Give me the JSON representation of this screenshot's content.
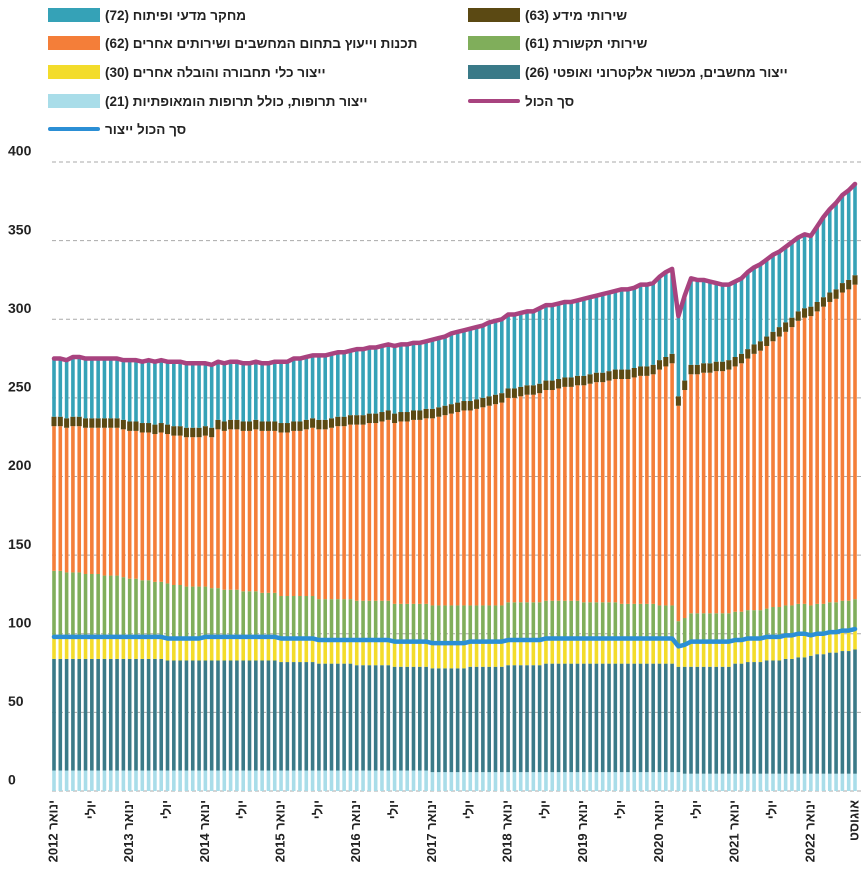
{
  "chart_data": {
    "type": "stacked-bar",
    "ylim": [
      0,
      400
    ],
    "yticks": [
      0,
      50,
      100,
      150,
      200,
      250,
      300,
      350,
      400
    ],
    "grid": true,
    "categories": [
      "ינואר 2012",
      null,
      null,
      null,
      null,
      null,
      "יולי",
      null,
      null,
      null,
      null,
      null,
      "ינואר 2013",
      null,
      null,
      null,
      null,
      null,
      "יולי",
      null,
      null,
      null,
      null,
      null,
      "ינואר 2014",
      null,
      null,
      null,
      null,
      null,
      "יולי",
      null,
      null,
      null,
      null,
      null,
      "ינואר 2015",
      null,
      null,
      null,
      null,
      null,
      "יולי",
      null,
      null,
      null,
      null,
      null,
      "ינואר 2016",
      null,
      null,
      null,
      null,
      null,
      "יולי",
      null,
      null,
      null,
      null,
      null,
      "ינואר 2017",
      null,
      null,
      null,
      null,
      null,
      "יולי",
      null,
      null,
      null,
      null,
      null,
      "ינואר 2018",
      null,
      null,
      null,
      null,
      null,
      "יולי",
      null,
      null,
      null,
      null,
      null,
      "ינואר 2019",
      null,
      null,
      null,
      null,
      null,
      "יולי",
      null,
      null,
      null,
      null,
      null,
      "ינואר 2020",
      null,
      null,
      null,
      null,
      null,
      "יולי",
      null,
      null,
      null,
      null,
      null,
      "ינואר 2021",
      null,
      null,
      null,
      null,
      null,
      "יולי",
      null,
      null,
      null,
      null,
      null,
      "ינואר 2022",
      null,
      null,
      null,
      null,
      null,
      null,
      "אוגוסט"
    ],
    "series": [
      {
        "name": "ייצור תרופות, כולל תרופות הומאופתיות (21)",
        "color": "#a9dde9",
        "type": "bar",
        "values": [
          13,
          13,
          13,
          13,
          13,
          13,
          13,
          13,
          13,
          13,
          13,
          13,
          13,
          13,
          13,
          13,
          13,
          13,
          13,
          13,
          13,
          13,
          13,
          13,
          13,
          13,
          13,
          13,
          13,
          13,
          13,
          13,
          13,
          13,
          13,
          13,
          13,
          13,
          13,
          13,
          13,
          13,
          13,
          13,
          13,
          13,
          13,
          13,
          13,
          13,
          13,
          13,
          13,
          13,
          13,
          13,
          13,
          13,
          13,
          13,
          12,
          12,
          12,
          12,
          12,
          12,
          12,
          12,
          12,
          12,
          12,
          12,
          12,
          12,
          12,
          12,
          12,
          12,
          12,
          12,
          12,
          12,
          12,
          12,
          12,
          12,
          12,
          12,
          12,
          12,
          12,
          12,
          12,
          12,
          12,
          12,
          12,
          12,
          12,
          12,
          11,
          11,
          11,
          11,
          11,
          11,
          11,
          11,
          11,
          11,
          11,
          11,
          11,
          11,
          11,
          11,
          11,
          11,
          11,
          11,
          11,
          11,
          11,
          11,
          11,
          11,
          11,
          11
        ]
      },
      {
        "name": "ייצור מחשבים, מכשור אלקטרוני ואופטי (26)",
        "color": "#3a7a88",
        "type": "bar",
        "values": [
          71,
          71,
          71,
          71,
          71,
          71,
          71,
          71,
          71,
          71,
          71,
          71,
          71,
          71,
          71,
          71,
          71,
          71,
          70,
          70,
          70,
          70,
          70,
          70,
          70,
          70,
          70,
          70,
          70,
          70,
          70,
          70,
          70,
          70,
          70,
          70,
          69,
          69,
          69,
          69,
          69,
          69,
          68,
          68,
          68,
          68,
          68,
          68,
          67,
          67,
          67,
          67,
          67,
          67,
          66,
          66,
          66,
          66,
          66,
          66,
          66,
          66,
          66,
          66,
          66,
          66,
          67,
          67,
          67,
          67,
          67,
          67,
          68,
          68,
          68,
          68,
          68,
          68,
          69,
          69,
          69,
          69,
          69,
          69,
          69,
          69,
          69,
          69,
          69,
          69,
          69,
          69,
          69,
          69,
          69,
          69,
          69,
          69,
          69,
          67,
          68,
          68,
          68,
          68,
          68,
          68,
          68,
          68,
          70,
          70,
          71,
          71,
          71,
          72,
          72,
          72,
          73,
          73,
          74,
          74,
          75,
          76,
          76,
          77,
          77,
          78,
          78,
          79
        ]
      },
      {
        "name": "ייצור כלי תחבורה והובלה אחרים (30)",
        "color": "#f3dc2b",
        "type": "bar",
        "values": [
          14,
          14,
          14,
          14,
          14,
          14,
          14,
          14,
          14,
          14,
          14,
          14,
          14,
          14,
          14,
          14,
          14,
          14,
          14,
          14,
          14,
          14,
          14,
          14,
          15,
          15,
          15,
          15,
          15,
          15,
          15,
          15,
          15,
          15,
          15,
          15,
          15,
          15,
          15,
          15,
          15,
          15,
          15,
          15,
          15,
          15,
          15,
          15,
          16,
          16,
          16,
          16,
          16,
          16,
          16,
          16,
          16,
          16,
          16,
          16,
          16,
          16,
          16,
          16,
          16,
          16,
          16,
          16,
          16,
          16,
          16,
          16,
          16,
          16,
          16,
          16,
          16,
          16,
          16,
          16,
          16,
          16,
          16,
          16,
          16,
          16,
          16,
          16,
          16,
          16,
          16,
          16,
          16,
          16,
          16,
          16,
          16,
          16,
          16,
          13,
          14,
          16,
          16,
          16,
          16,
          16,
          16,
          16,
          15,
          15,
          15,
          15,
          15,
          15,
          15,
          15,
          15,
          15,
          15,
          15,
          13,
          13,
          13,
          13,
          13,
          13,
          13,
          13
        ]
      },
      {
        "name": "שירותי תקשורת (61)",
        "color": "#80ae5b",
        "type": "bar",
        "values": [
          42,
          42,
          41,
          41,
          41,
          40,
          40,
          40,
          39,
          39,
          39,
          38,
          37,
          37,
          36,
          36,
          35,
          35,
          35,
          34,
          34,
          33,
          33,
          33,
          32,
          31,
          31,
          30,
          30,
          30,
          29,
          29,
          29,
          28,
          28,
          28,
          27,
          27,
          27,
          27,
          27,
          27,
          26,
          26,
          26,
          26,
          26,
          26,
          25,
          25,
          25,
          25,
          25,
          25,
          24,
          24,
          24,
          24,
          24,
          24,
          24,
          24,
          24,
          24,
          24,
          24,
          23,
          23,
          23,
          23,
          23,
          23,
          24,
          24,
          24,
          24,
          24,
          24,
          24,
          24,
          24,
          24,
          24,
          24,
          23,
          23,
          23,
          23,
          23,
          23,
          22,
          22,
          22,
          22,
          22,
          22,
          21,
          21,
          21,
          16,
          17,
          18,
          18,
          18,
          18,
          18,
          18,
          18,
          18,
          18,
          18,
          18,
          18,
          18,
          19,
          19,
          19,
          19,
          19,
          19,
          19,
          19,
          19,
          19,
          19,
          19,
          19,
          19
        ]
      },
      {
        "name": "תכנות וייעוץ בתחום המחשבים ושירותים אחרים (62)",
        "color": "#f47e39",
        "type": "bar",
        "values": [
          92,
          92,
          92,
          93,
          93,
          93,
          93,
          93,
          94,
          94,
          94,
          94,
          94,
          94,
          94,
          94,
          94,
          95,
          95,
          95,
          95,
          95,
          95,
          95,
          96,
          96,
          101,
          101,
          102,
          102,
          102,
          102,
          103,
          103,
          103,
          103,
          104,
          104,
          105,
          105,
          106,
          107,
          108,
          108,
          109,
          110,
          110,
          111,
          112,
          112,
          113,
          113,
          114,
          115,
          115,
          116,
          116,
          117,
          117,
          118,
          119,
          120,
          121,
          122,
          123,
          124,
          124,
          125,
          126,
          127,
          128,
          129,
          130,
          130,
          131,
          132,
          132,
          133,
          134,
          134,
          135,
          136,
          136,
          137,
          138,
          139,
          140,
          140,
          141,
          142,
          143,
          143,
          144,
          145,
          145,
          146,
          150,
          152,
          154,
          137,
          145,
          152,
          152,
          153,
          153,
          154,
          154,
          155,
          156,
          158,
          160,
          163,
          165,
          167,
          169,
          172,
          174,
          177,
          180,
          182,
          184,
          186,
          189,
          191,
          193,
          196,
          198,
          200
        ]
      },
      {
        "name": "שירותי מידע (63)",
        "color": "#5b4913",
        "type": "bar",
        "values": [
          6,
          6,
          6,
          6,
          6,
          6,
          6,
          6,
          6,
          6,
          6,
          6,
          6,
          6,
          6,
          6,
          6,
          6,
          6,
          6,
          6,
          6,
          6,
          6,
          6,
          6,
          6,
          6,
          6,
          6,
          6,
          6,
          6,
          6,
          6,
          6,
          6,
          6,
          6,
          6,
          6,
          6,
          6,
          6,
          6,
          6,
          6,
          6,
          6,
          6,
          6,
          6,
          6,
          6,
          6,
          6,
          6,
          6,
          6,
          6,
          6,
          6,
          6,
          6,
          6,
          6,
          6,
          6,
          6,
          6,
          6,
          6,
          6,
          6,
          6,
          6,
          6,
          6,
          6,
          6,
          6,
          6,
          6,
          6,
          6,
          6,
          6,
          6,
          6,
          6,
          6,
          6,
          6,
          6,
          6,
          6,
          6,
          6,
          6,
          6,
          6,
          6,
          6,
          6,
          6,
          6,
          6,
          6,
          6,
          6,
          6,
          6,
          6,
          6,
          6,
          6,
          6,
          6,
          6,
          6,
          6,
          6,
          6,
          6,
          6,
          6,
          6,
          6
        ]
      },
      {
        "name": "מחקר מדעי ופיתוח (72)",
        "color": "#35a2b7",
        "type": "bar",
        "values": [
          37,
          37,
          37,
          38,
          38,
          38,
          38,
          38,
          38,
          38,
          38,
          38,
          39,
          39,
          39,
          40,
          40,
          40,
          40,
          41,
          41,
          41,
          41,
          41,
          40,
          40,
          37,
          37,
          37,
          37,
          37,
          37,
          37,
          37,
          37,
          38,
          39,
          39,
          40,
          40,
          40,
          40,
          41,
          41,
          41,
          41,
          41,
          41,
          42,
          42,
          42,
          42,
          42,
          42,
          43,
          43,
          43,
          43,
          43,
          43,
          44,
          44,
          44,
          45,
          45,
          45,
          46,
          46,
          46,
          47,
          47,
          47,
          47,
          47,
          47,
          47,
          47,
          48,
          48,
          48,
          48,
          48,
          48,
          48,
          49,
          49,
          49,
          50,
          50,
          50,
          51,
          51,
          51,
          52,
          52,
          52,
          53,
          54,
          54,
          51,
          54,
          55,
          54,
          53,
          52,
          50,
          49,
          48,
          48,
          48,
          49,
          49,
          49,
          49,
          49,
          48,
          48,
          48,
          47,
          47,
          45,
          48,
          51,
          53,
          55,
          56,
          57,
          58
        ]
      },
      {
        "name": "סך הכול",
        "color": "#a8437f",
        "type": "line",
        "values": [
          275,
          275,
          274,
          276,
          276,
          275,
          275,
          275,
          275,
          275,
          275,
          274,
          274,
          274,
          273,
          274,
          273,
          274,
          273,
          273,
          273,
          272,
          272,
          272,
          272,
          271,
          273,
          272,
          273,
          273,
          272,
          272,
          273,
          272,
          272,
          273,
          273,
          273,
          275,
          275,
          276,
          277,
          277,
          277,
          278,
          279,
          279,
          280,
          281,
          281,
          282,
          282,
          283,
          284,
          283,
          284,
          284,
          285,
          285,
          286,
          287,
          288,
          289,
          291,
          292,
          293,
          294,
          295,
          296,
          298,
          299,
          300,
          303,
          303,
          304,
          305,
          305,
          307,
          309,
          309,
          310,
          311,
          311,
          312,
          313,
          314,
          315,
          316,
          317,
          318,
          319,
          319,
          320,
          322,
          322,
          323,
          327,
          330,
          332,
          302,
          315,
          326,
          325,
          325,
          324,
          323,
          322,
          322,
          324,
          326,
          330,
          333,
          335,
          338,
          341,
          343,
          346,
          349,
          352,
          354,
          353,
          359,
          365,
          370,
          374,
          379,
          382,
          386
        ]
      },
      {
        "name": "סך הכול ייצור",
        "color": "#2b8fd5",
        "type": "line",
        "values": [
          98,
          98,
          98,
          98,
          98,
          98,
          98,
          98,
          98,
          98,
          98,
          98,
          98,
          98,
          98,
          98,
          98,
          98,
          97,
          97,
          97,
          97,
          97,
          97,
          98,
          98,
          98,
          98,
          98,
          98,
          98,
          98,
          98,
          98,
          98,
          98,
          97,
          97,
          97,
          97,
          97,
          97,
          96,
          96,
          96,
          96,
          96,
          96,
          96,
          96,
          96,
          96,
          96,
          96,
          95,
          95,
          95,
          95,
          95,
          95,
          94,
          94,
          94,
          94,
          94,
          94,
          95,
          95,
          95,
          95,
          95,
          95,
          96,
          96,
          96,
          96,
          96,
          96,
          97,
          97,
          97,
          97,
          97,
          97,
          97,
          97,
          97,
          97,
          97,
          97,
          97,
          97,
          97,
          97,
          97,
          97,
          97,
          97,
          97,
          92,
          93,
          95,
          95,
          95,
          95,
          95,
          95,
          95,
          96,
          96,
          97,
          97,
          97,
          98,
          98,
          98,
          99,
          99,
          100,
          100,
          99,
          100,
          100,
          101,
          101,
          102,
          102,
          103
        ]
      }
    ]
  }
}
